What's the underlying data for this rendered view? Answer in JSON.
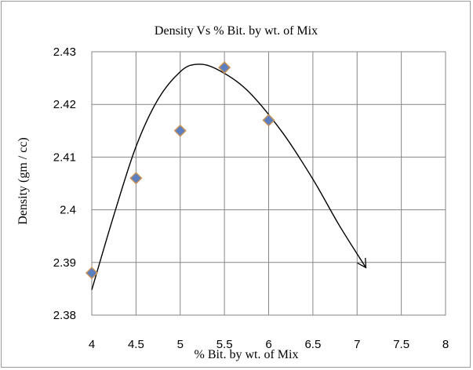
{
  "chart_data": {
    "type": "scatter",
    "title": "Density Vs % Bit. by wt. of Mix",
    "xlabel": "% Bit. by wt. of Mix",
    "ylabel": "Density (gm / cc)",
    "xlim": [
      4,
      8
    ],
    "ylim": [
      2.38,
      2.43
    ],
    "x_ticks": [
      "4",
      "4.5",
      "5",
      "5.5",
      "6",
      "6.5",
      "7",
      "7.5",
      "8"
    ],
    "y_ticks": [
      "2.38",
      "2.39",
      "2.4",
      "2.41",
      "2.42",
      "2.43"
    ],
    "grid": true,
    "legend": "none",
    "marker_color": "#5b7fc0",
    "marker_edge_color": "#c8925a",
    "curve_color": "#000000",
    "series": [
      {
        "points": [
          {
            "x": 4.0,
            "y": 2.388
          },
          {
            "x": 4.5,
            "y": 2.406
          },
          {
            "x": 5.0,
            "y": 2.415
          },
          {
            "x": 5.5,
            "y": 2.427
          },
          {
            "x": 6.0,
            "y": 2.417
          }
        ]
      }
    ],
    "fit_curve": {
      "style": "freehand curve with arrowhead",
      "points": [
        {
          "x": 4.0,
          "y": 2.3848
        },
        {
          "x": 4.25,
          "y": 2.399
        },
        {
          "x": 4.5,
          "y": 2.412
        },
        {
          "x": 4.75,
          "y": 2.421
        },
        {
          "x": 5.0,
          "y": 2.4262
        },
        {
          "x": 5.18,
          "y": 2.4276
        },
        {
          "x": 5.4,
          "y": 2.4268
        },
        {
          "x": 5.75,
          "y": 2.4228
        },
        {
          "x": 6.15,
          "y": 2.4148
        },
        {
          "x": 6.5,
          "y": 2.4058
        },
        {
          "x": 6.8,
          "y": 2.397
        },
        {
          "x": 7.1,
          "y": 2.389
        }
      ]
    }
  }
}
